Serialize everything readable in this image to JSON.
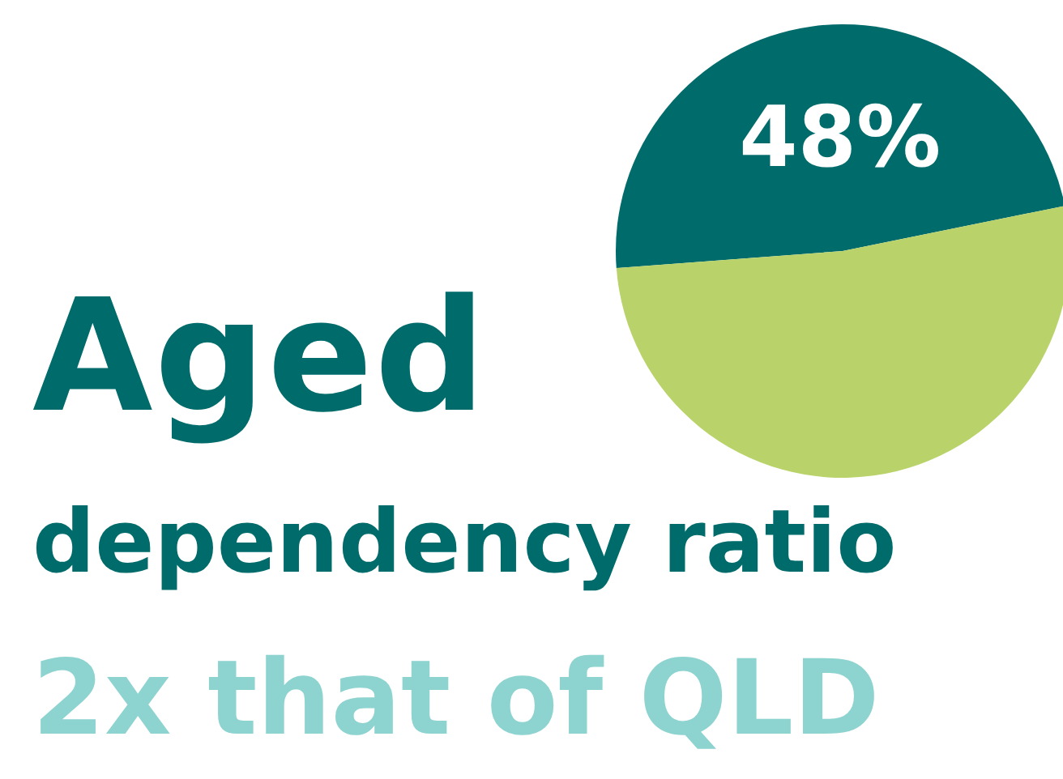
{
  "chart_data": {
    "type": "pie",
    "title": "Aged dependency ratio",
    "subtitle": "2x that of QLD",
    "categories": [
      null,
      null
    ],
    "values": [
      48,
      52
    ],
    "colors": [
      "#006b6b",
      "#b9d36a"
    ],
    "value_labels": [
      "48%",
      null
    ],
    "legend": false
  }
}
